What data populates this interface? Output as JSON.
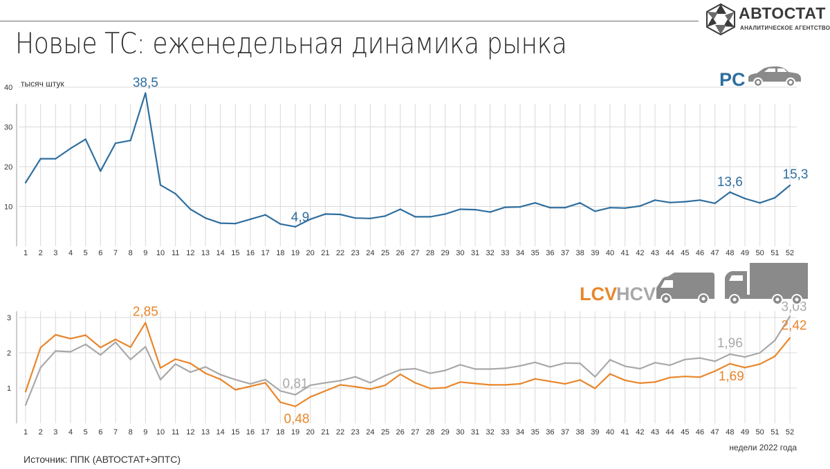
{
  "title": "Новые ТС: еженедельная динамика рынка",
  "logo": {
    "name": "АВТОСТАТ",
    "subtitle": "АНАЛИТИЧЕСКОЕ АГЕНТСТВО"
  },
  "source": "Источник: ППК (АВТОСТАТ+ЭПТС)",
  "colors": {
    "pc": "#2e6e9e",
    "lcv": "#e8862a",
    "hcv": "#a8a8a8",
    "grid": "#d9d9d9",
    "icon": "#8a8a8a"
  },
  "icons": [
    "car-icon",
    "van-icon",
    "truck-icon",
    "autostat-logo-icon"
  ],
  "chart_data": [
    {
      "type": "line",
      "unit_label": "тысяч штук",
      "category_label": "PC",
      "ylim": [
        0,
        40
      ],
      "yticks": [
        10,
        20,
        30,
        40
      ],
      "grid": true,
      "x": [
        1,
        2,
        3,
        4,
        5,
        6,
        7,
        8,
        9,
        10,
        11,
        12,
        13,
        14,
        15,
        16,
        17,
        18,
        19,
        20,
        21,
        22,
        23,
        24,
        25,
        26,
        27,
        28,
        29,
        30,
        31,
        32,
        33,
        34,
        35,
        36,
        37,
        38,
        39,
        40,
        41,
        42,
        43,
        44,
        45,
        46,
        47,
        48,
        49,
        50,
        51,
        52
      ],
      "series": [
        {
          "key": "pc",
          "values": [
            16.0,
            22.0,
            22.0,
            24.6,
            26.9,
            18.9,
            25.9,
            26.6,
            38.5,
            15.4,
            13.2,
            9.3,
            7.1,
            5.8,
            5.7,
            6.8,
            7.9,
            5.6,
            4.9,
            6.8,
            8.1,
            8.0,
            7.1,
            7.0,
            7.6,
            9.3,
            7.4,
            7.4,
            8.1,
            9.3,
            9.2,
            8.6,
            9.8,
            9.9,
            10.9,
            9.7,
            9.7,
            10.9,
            8.8,
            9.7,
            9.6,
            10.1,
            11.6,
            11.0,
            11.2,
            11.6,
            10.8,
            13.6,
            12.0,
            10.9,
            12.2,
            15.3
          ]
        }
      ],
      "annotations": [
        {
          "x": 9,
          "label": "38,5"
        },
        {
          "x": 19,
          "label": "4,9"
        },
        {
          "x": 48,
          "label": "13,6"
        },
        {
          "x": 52,
          "label": "15,3"
        }
      ]
    },
    {
      "type": "line",
      "legend": [
        "LCV",
        "HCV"
      ],
      "ylim": [
        0,
        3
      ],
      "yticks": [
        1,
        2,
        3
      ],
      "grid": true,
      "xlabel": "недели 2022 года",
      "x": [
        1,
        2,
        3,
        4,
        5,
        6,
        7,
        8,
        9,
        10,
        11,
        12,
        13,
        14,
        15,
        16,
        17,
        18,
        19,
        20,
        21,
        22,
        23,
        24,
        25,
        26,
        27,
        28,
        29,
        30,
        31,
        32,
        33,
        34,
        35,
        36,
        37,
        38,
        39,
        40,
        41,
        42,
        43,
        44,
        45,
        46,
        47,
        48,
        49,
        50,
        51,
        52
      ],
      "series": [
        {
          "key": "hcv",
          "name": "HCV",
          "values": [
            0.52,
            1.58,
            2.05,
            2.03,
            2.24,
            1.94,
            2.3,
            1.81,
            2.17,
            1.24,
            1.68,
            1.45,
            1.6,
            1.38,
            1.24,
            1.12,
            1.24,
            0.92,
            0.81,
            1.08,
            1.15,
            1.21,
            1.32,
            1.15,
            1.35,
            1.52,
            1.55,
            1.42,
            1.5,
            1.66,
            1.54,
            1.54,
            1.56,
            1.63,
            1.73,
            1.6,
            1.71,
            1.7,
            1.32,
            1.8,
            1.62,
            1.55,
            1.72,
            1.65,
            1.81,
            1.85,
            1.76,
            1.96,
            1.88,
            2.0,
            2.35,
            3.03
          ]
        },
        {
          "key": "lcv",
          "name": "LCV",
          "values": [
            0.9,
            2.15,
            2.51,
            2.4,
            2.5,
            2.15,
            2.38,
            2.16,
            2.85,
            1.57,
            1.82,
            1.7,
            1.42,
            1.25,
            0.95,
            1.05,
            1.15,
            0.6,
            0.48,
            0.75,
            0.92,
            1.09,
            1.04,
            0.97,
            1.08,
            1.39,
            1.15,
            0.99,
            1.01,
            1.17,
            1.13,
            1.09,
            1.09,
            1.12,
            1.26,
            1.19,
            1.12,
            1.23,
            0.99,
            1.4,
            1.22,
            1.14,
            1.17,
            1.3,
            1.33,
            1.31,
            1.48,
            1.69,
            1.58,
            1.68,
            1.9,
            2.42
          ]
        }
      ],
      "annotations": [
        {
          "series": "lcv",
          "x": 9,
          "label": "2,85"
        },
        {
          "series": "hcv",
          "x": 19,
          "label": "0,81"
        },
        {
          "series": "lcv",
          "x": 19,
          "label": "0,48"
        },
        {
          "series": "hcv",
          "x": 48,
          "label": "1,96"
        },
        {
          "series": "lcv",
          "x": 48,
          "label": "1,69"
        },
        {
          "series": "hcv",
          "x": 52,
          "label": "3,03"
        },
        {
          "series": "lcv",
          "x": 52,
          "label": "2,42"
        }
      ]
    }
  ]
}
